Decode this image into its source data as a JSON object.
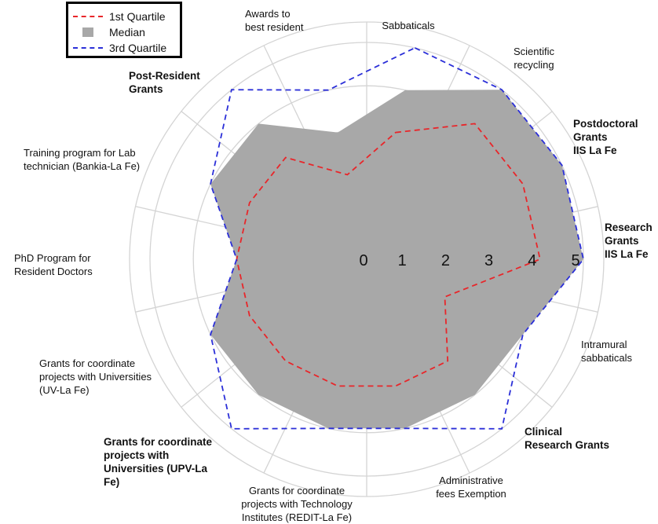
{
  "chart_data": {
    "type": "radar",
    "r_range": [
      0,
      5
    ],
    "r_ticks": [
      "0",
      "1",
      "2",
      "3",
      "4",
      "5"
    ],
    "grid": true,
    "legend_position": "top-left",
    "categories": [
      {
        "label": "Sabbaticals",
        "bold": false
      },
      {
        "label": "Scientific\nrecycling",
        "bold": false
      },
      {
        "label": "Postdoctoral\nGrants\nIIS La Fe",
        "bold": true
      },
      {
        "label": "Research\nGrants\nIIS La Fe",
        "bold": true
      },
      {
        "label": "Intramural\nsabbaticals",
        "bold": false
      },
      {
        "label": "Clinical\nResearch Grants",
        "bold": true
      },
      {
        "label": "Administrative\nfees Exemption",
        "bold": false
      },
      {
        "label": "Grants for coordinate\nprojects with Technology\nInstitutes (REDIT-La Fe)",
        "bold": false
      },
      {
        "label": "Grants for coordinate\nprojects with\nUniversities (UPV-La\nFe)",
        "bold": true
      },
      {
        "label": "Grants for coordinate\nprojects with Universities\n(UV-La Fe)",
        "bold": false
      },
      {
        "label": "PhD Program for\nResident Doctors",
        "bold": false
      },
      {
        "label": "Training program for Lab\ntechnician (Bankia-La Fe)",
        "bold": false
      },
      {
        "label": "Post-Resident\nGrants",
        "bold": true
      },
      {
        "label": "Awards to\nbest resident",
        "bold": false
      }
    ],
    "series": [
      {
        "name": "1st Quartile",
        "values": [
          3,
          4,
          4,
          4,
          2,
          3,
          3,
          3,
          3,
          3,
          3,
          3,
          3,
          2
        ],
        "style": "dashed",
        "color": "#e8262a"
      },
      {
        "name": "Median",
        "values": [
          4,
          5,
          5,
          5,
          4,
          4,
          4,
          4,
          4,
          4,
          3,
          4,
          4,
          3
        ],
        "style": "fill",
        "color": "#a8a8a8"
      },
      {
        "name": "3rd Quartile",
        "values": [
          5,
          5,
          5,
          5,
          4,
          5,
          4,
          4,
          5,
          4,
          3,
          4,
          5,
          4
        ],
        "style": "dashed",
        "color": "#2b2fd8"
      }
    ]
  }
}
